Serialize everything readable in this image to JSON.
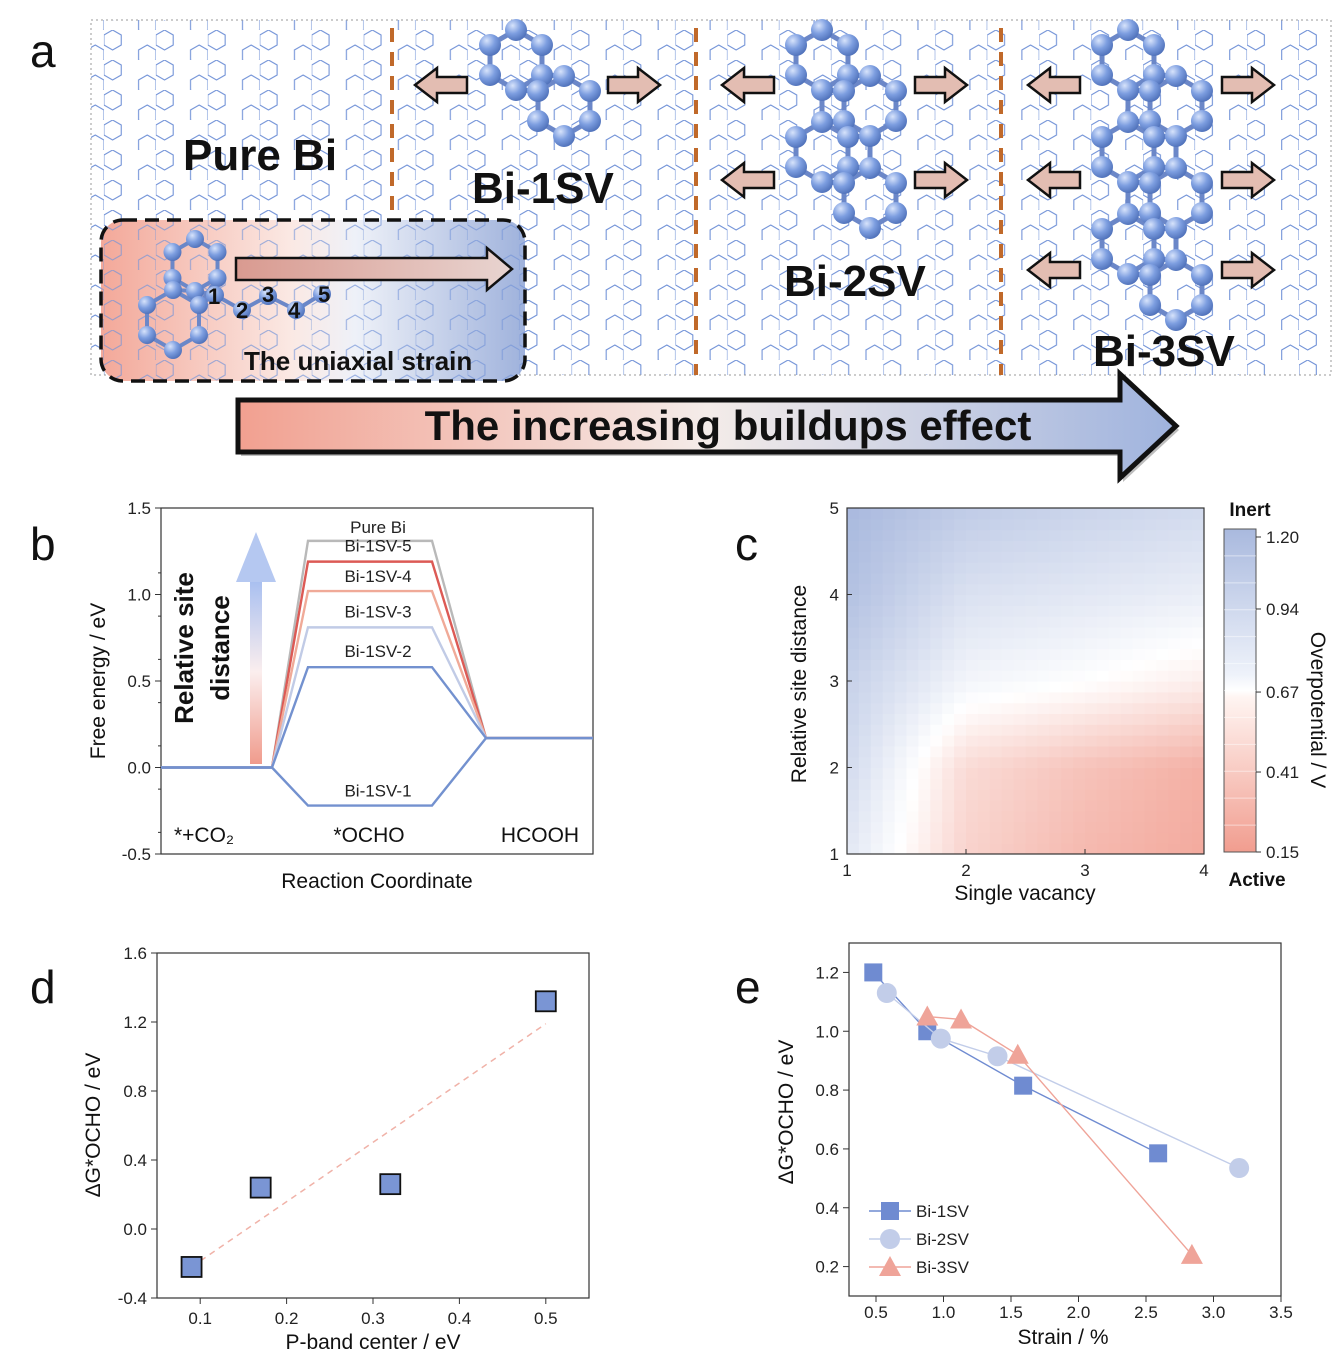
{
  "panel_labels": {
    "a": "a",
    "b": "b",
    "c": "c",
    "d": "d",
    "e": "e"
  },
  "panel_a": {
    "labels": {
      "pure": "Pure Bi",
      "sv1": "Bi-1SV",
      "sv2": "Bi-2SV",
      "sv3": "Bi-3SV"
    },
    "inset_title": "The uniaxial strain",
    "site_numbers": [
      "1",
      "2",
      "3",
      "4",
      "5"
    ],
    "banner": "The increasing buildups effect",
    "colors": {
      "atom": "#6f8fd4",
      "lattice": "#6d8fd8",
      "divider": "#c0692a",
      "arrow_fill": "#e3bdb2",
      "banner_start": "#f2a292",
      "banner_end": "#a9b9de",
      "banner_text": "#4a72c4"
    }
  },
  "chart_data": [
    {
      "id": "b",
      "type": "line",
      "xlabel": "Reaction Coordinate",
      "ylabel": "Free energy / eV",
      "ylim": [
        -0.5,
        1.5
      ],
      "yticks": [
        "-0.5",
        "0.0",
        "0.5",
        "1.0",
        "1.5"
      ],
      "states": [
        "*+CO₂",
        "*OCHO",
        "HCOOH"
      ],
      "series": [
        {
          "name": "Pure Bi",
          "values": [
            0,
            1.31,
            0.17
          ],
          "color": "#b9b9b9"
        },
        {
          "name": "Bi-1SV-5",
          "values": [
            0,
            1.19,
            0.17
          ],
          "color": "#dc5a55"
        },
        {
          "name": "Bi-1SV-4",
          "values": [
            0,
            1.02,
            0.17
          ],
          "color": "#f0aa98"
        },
        {
          "name": "Bi-1SV-3",
          "values": [
            0,
            0.81,
            0.17
          ],
          "color": "#c1cbe6"
        },
        {
          "name": "Bi-1SV-2",
          "values": [
            0,
            0.58,
            0.17
          ],
          "color": "#7391cf"
        },
        {
          "name": "Bi-1SV-1",
          "values": [
            0,
            -0.22,
            0.17
          ],
          "color": "#7391cf"
        }
      ],
      "annotation": {
        "line1": "Relative site",
        "line2": "distance"
      }
    },
    {
      "id": "c",
      "type": "heatmap",
      "xlabel": "Single vacancy",
      "ylabel": "Relative site distance",
      "xlim": [
        1,
        4
      ],
      "ylim": [
        1,
        5
      ],
      "xticks": [
        "1",
        "2",
        "3",
        "4"
      ],
      "yticks": [
        "1",
        "2",
        "3",
        "4",
        "5"
      ],
      "colorbar": {
        "label": "Overpotential / V",
        "ticks": [
          "0.15",
          "0.41",
          "0.67",
          "0.94",
          "1.20"
        ],
        "top": "Inert",
        "bottom": "Active",
        "min": 0.15,
        "max": 1.2
      },
      "x": [
        1,
        2,
        3,
        4
      ],
      "y": [
        1,
        2,
        3,
        4,
        5
      ],
      "z": [
        [
          0.85,
          0.44,
          0.3,
          0.22
        ],
        [
          0.95,
          0.48,
          0.35,
          0.25
        ],
        [
          1.02,
          0.75,
          0.68,
          0.58
        ],
        [
          1.14,
          0.9,
          0.85,
          0.8
        ],
        [
          1.2,
          1.06,
          1.0,
          0.95
        ]
      ]
    },
    {
      "id": "d",
      "type": "scatter",
      "xlabel": "P-band center / eV",
      "ylabel": "ΔG*OCHO / eV",
      "xlim": [
        0.05,
        0.55
      ],
      "ylim": [
        -0.4,
        1.6
      ],
      "xticks": [
        "0.1",
        "0.2",
        "0.3",
        "0.4",
        "0.5"
      ],
      "yticks": [
        "-0.4",
        "0.0",
        "0.4",
        "0.8",
        "1.2",
        "1.6"
      ],
      "points": [
        {
          "x": 0.09,
          "y": -0.22
        },
        {
          "x": 0.17,
          "y": 0.24
        },
        {
          "x": 0.32,
          "y": 0.26
        },
        {
          "x": 0.5,
          "y": 1.32
        }
      ],
      "fit": [
        {
          "x": 0.09,
          "y": -0.22
        },
        {
          "x": 0.5,
          "y": 1.19
        }
      ]
    },
    {
      "id": "e",
      "type": "line",
      "xlabel": "Strain / %",
      "ylabel": "ΔG*OCHO / eV",
      "xlim": [
        0.3,
        3.5
      ],
      "ylim": [
        0.1,
        1.3
      ],
      "xticks": [
        "0.5",
        "1.0",
        "1.5",
        "2.0",
        "2.5",
        "3.0",
        "3.5"
      ],
      "yticks": [
        "0.2",
        "0.4",
        "0.6",
        "0.8",
        "1.0",
        "1.2"
      ],
      "series": [
        {
          "name": "Bi-1SV",
          "marker": "square",
          "color": "#6f8bd1",
          "x": [
            0.48,
            0.88,
            1.59,
            2.59
          ],
          "y": [
            1.2,
            1.0,
            0.815,
            0.585
          ]
        },
        {
          "name": "Bi-2SV",
          "marker": "circle",
          "color": "#c2cde9",
          "x": [
            0.58,
            0.98,
            1.4,
            3.19
          ],
          "y": [
            1.13,
            0.975,
            0.915,
            0.535
          ]
        },
        {
          "name": "Bi-3SV",
          "marker": "triangle",
          "color": "#efa499",
          "x": [
            0.88,
            1.13,
            1.55,
            2.84
          ],
          "y": [
            1.05,
            1.04,
            0.92,
            0.24
          ]
        }
      ]
    }
  ]
}
